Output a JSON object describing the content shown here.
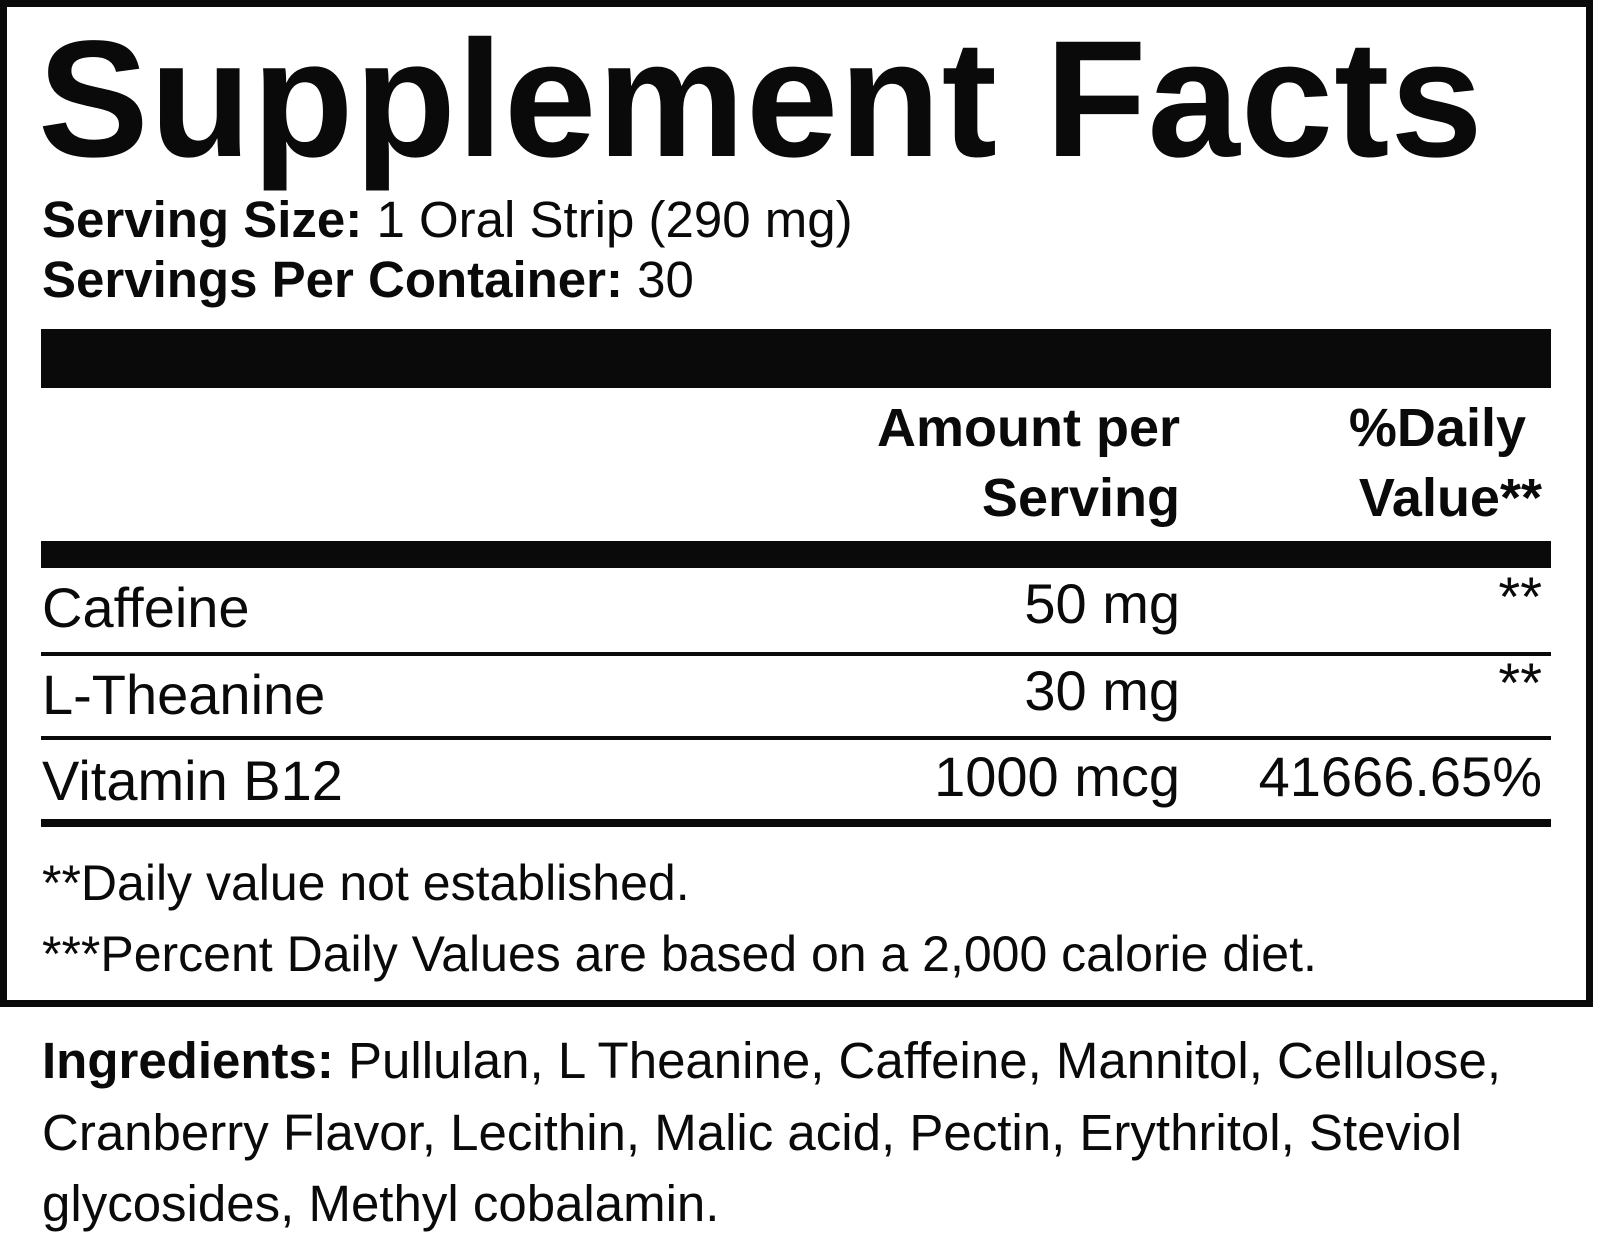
{
  "title": "Supplement Facts",
  "serving_size": {
    "label": "Serving Size:",
    "value": "1 Oral Strip (290 mg)"
  },
  "servings_per_container": {
    "label": "Servings Per Container:",
    "value": "30"
  },
  "columns": {
    "amount": [
      "Amount per",
      "Serving"
    ],
    "daily_value": [
      "%Daily",
      "Value**"
    ]
  },
  "rows": [
    {
      "name": "Caffeine",
      "amount": "50 mg",
      "dv": "**"
    },
    {
      "name": "L-Theanine",
      "amount": "30 mg",
      "dv": "**"
    },
    {
      "name": "Vitamin B12",
      "amount": "1000 mcg",
      "dv": "41666.65%"
    }
  ],
  "footnotes": [
    "**Daily value not established.",
    "***Percent Daily Values are based on a 2,000 calorie diet."
  ],
  "ingredients": {
    "label": "Ingredients:",
    "text": "Pullulan, L Theanine, Caffeine, Mannitol, Cellulose, Cranberry Flavor, Lecithin, Malic acid, Pectin, Erythritol, Steviol glycosides, Methyl cobalamin."
  }
}
